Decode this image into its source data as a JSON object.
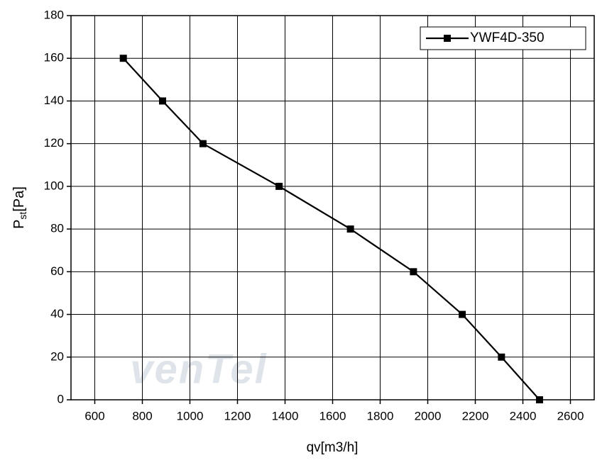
{
  "chart_data": {
    "type": "line",
    "xlabel": "qv[m3/h]",
    "ylabel": {
      "main": "P",
      "sub": "st",
      "unit": "[Pa]"
    },
    "watermark": "venTel",
    "x": [
      720,
      885,
      1055,
      1375,
      1675,
      1940,
      2145,
      2310,
      2470
    ],
    "series": [
      {
        "name": "YWF4D-350",
        "color": "#000000",
        "values": [
          160,
          140,
          120,
          100,
          80,
          60,
          40,
          20,
          0
        ]
      }
    ],
    "xlim": [
      500,
      2700
    ],
    "xticks": [
      600,
      800,
      1000,
      1200,
      1400,
      1600,
      1800,
      2000,
      2200,
      2400,
      2600
    ],
    "ylim": [
      0,
      180
    ],
    "yticks": [
      0,
      20,
      40,
      60,
      80,
      100,
      120,
      140,
      160,
      180
    ],
    "grid": true,
    "legend": "upper right",
    "marker": "square"
  }
}
